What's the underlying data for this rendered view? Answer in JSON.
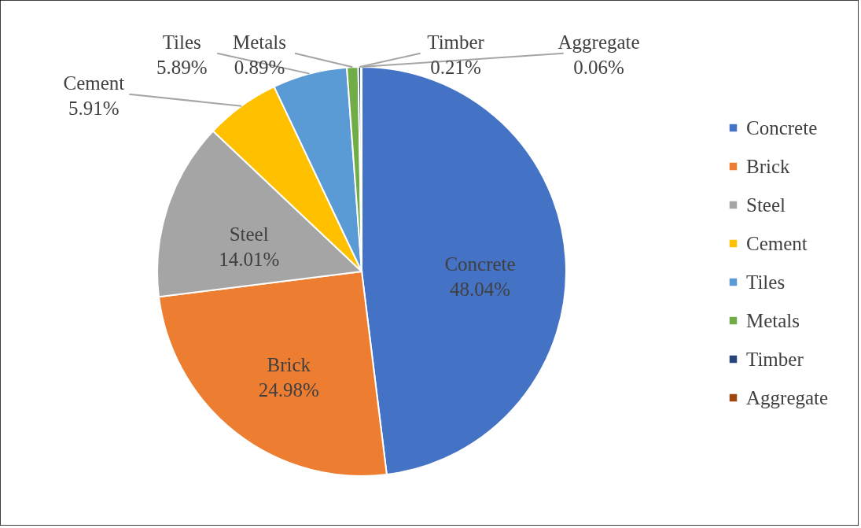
{
  "chart_data": {
    "type": "pie",
    "categories": [
      "Concrete",
      "Brick",
      "Steel",
      "Cement",
      "Tiles",
      "Metals",
      "Timber",
      "Aggregate"
    ],
    "values": [
      48.04,
      24.98,
      14.01,
      5.91,
      5.89,
      0.89,
      0.21,
      0.06
    ],
    "colors": [
      "#4472c4",
      "#ed7d31",
      "#a5a5a5",
      "#ffc000",
      "#5b9bd5",
      "#70ad47",
      "#264478",
      "#9e480e"
    ],
    "value_labels": [
      "48.04%",
      "24.98%",
      "14.01%",
      "5.91%",
      "5.89%",
      "0.89%",
      "0.21%",
      "0.06%"
    ],
    "legend": "right"
  }
}
